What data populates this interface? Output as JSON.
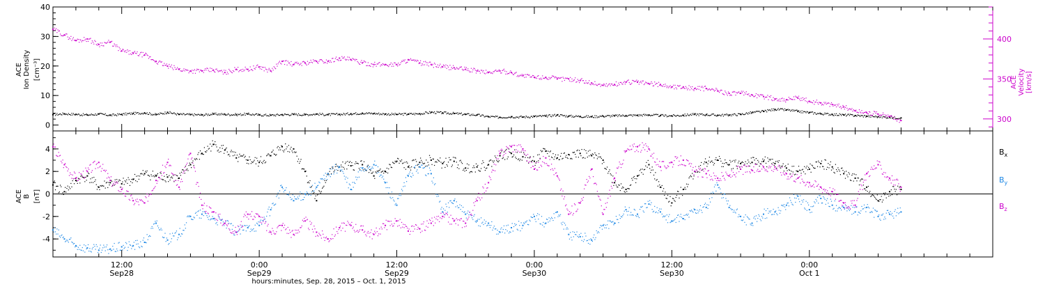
{
  "colors": {
    "density": "#000000",
    "velocity": "#cc00cc",
    "bx": "#000000",
    "by": "#1e88e5",
    "bz": "#cc00cc",
    "axis": "#000000",
    "background": "#ffffff"
  },
  "chart_data": [
    {
      "type": "scatter",
      "title": "",
      "left_axis": {
        "label_lines": [
          "ACE",
          "Ion Density"
        ],
        "unit": "[cm⁻³]",
        "ylim": [
          -2,
          40
        ],
        "ticks": [
          0,
          10,
          20,
          30,
          40
        ],
        "tick_labels": [
          "0",
          "10",
          "20",
          "30",
          "40"
        ]
      },
      "right_axis": {
        "label_lines": [
          "ACE",
          "Velocity"
        ],
        "unit": "[km/s]",
        "ylim": [
          285,
          440
        ],
        "ticks": [
          300,
          350,
          400
        ],
        "tick_labels": [
          "300",
          "350",
          "400"
        ]
      },
      "series": [
        {
          "name": "Ion Density",
          "axis": "left",
          "x_hours": [
            0,
            1,
            2,
            3,
            4,
            5,
            6,
            7,
            8,
            9,
            10,
            11,
            12,
            13,
            14,
            15,
            16,
            17,
            18,
            19,
            20,
            21,
            22,
            23,
            24,
            25,
            26,
            27,
            28,
            29,
            30,
            31,
            32,
            33,
            34,
            35,
            36,
            37,
            38,
            39,
            40,
            41,
            42,
            43,
            44,
            45,
            46,
            47,
            48,
            49,
            50,
            51,
            52,
            53,
            54,
            55,
            56,
            57,
            58,
            59,
            60,
            61,
            62,
            63,
            64,
            65,
            66,
            67,
            68,
            69,
            70,
            71,
            72,
            73,
            74
          ],
          "values": [
            3.5,
            3.8,
            3.6,
            3.4,
            3.7,
            3.3,
            3.6,
            3.9,
            4.1,
            3.5,
            4.3,
            3.6,
            3.5,
            3.4,
            3.7,
            3.6,
            3.5,
            3.7,
            3.4,
            3.3,
            3.5,
            3.6,
            3.5,
            3.7,
            3.5,
            3.6,
            3.8,
            4.0,
            3.9,
            3.7,
            3.6,
            3.7,
            3.8,
            4.3,
            4.1,
            3.9,
            3.6,
            3.4,
            2.8,
            2.6,
            2.8,
            2.7,
            2.9,
            3.0,
            3.4,
            3.0,
            2.9,
            2.8,
            3.0,
            3.1,
            3.2,
            3.3,
            3.4,
            3.2,
            3.1,
            3.3,
            3.6,
            3.5,
            3.3,
            3.4,
            3.6,
            4.2,
            4.6,
            5.3,
            5.1,
            4.6,
            4.2,
            3.8,
            3.6,
            3.4,
            3.2,
            3.0,
            2.8,
            2.6,
            2.4
          ]
        },
        {
          "name": "Velocity",
          "axis": "right",
          "x_hours": [
            0,
            1,
            2,
            3,
            4,
            5,
            6,
            7,
            8,
            9,
            10,
            11,
            12,
            13,
            14,
            15,
            16,
            17,
            18,
            19,
            20,
            21,
            22,
            23,
            24,
            25,
            26,
            27,
            28,
            29,
            30,
            31,
            32,
            33,
            34,
            35,
            36,
            37,
            38,
            39,
            40,
            41,
            42,
            43,
            44,
            45,
            46,
            47,
            48,
            49,
            50,
            51,
            52,
            53,
            54,
            55,
            56,
            57,
            58,
            59,
            60,
            61,
            62,
            63,
            64,
            65,
            66,
            67,
            68,
            69,
            70,
            71,
            72,
            73,
            74
          ],
          "values": [
            412,
            405,
            398,
            400,
            393,
            396,
            385,
            382,
            380,
            372,
            366,
            362,
            360,
            360,
            361,
            358,
            362,
            362,
            365,
            360,
            372,
            368,
            370,
            372,
            372,
            376,
            374,
            370,
            368,
            368,
            368,
            374,
            370,
            368,
            365,
            364,
            362,
            360,
            358,
            360,
            358,
            354,
            352,
            352,
            350,
            350,
            348,
            345,
            342,
            343,
            346,
            346,
            344,
            343,
            340,
            340,
            338,
            338,
            335,
            332,
            332,
            330,
            328,
            325,
            324,
            326,
            322,
            320,
            318,
            315,
            310,
            308,
            306,
            303,
            298
          ]
        }
      ]
    },
    {
      "type": "scatter",
      "title": "",
      "left_axis": {
        "label_lines": [
          "ACE",
          "B"
        ],
        "unit": "[nT]",
        "ylim": [
          -5.6,
          5.6
        ],
        "ticks": [
          -4,
          -2,
          0,
          2,
          4
        ],
        "tick_labels": [
          "-4",
          "-2",
          "0",
          "2",
          "4"
        ]
      },
      "zero_line": true,
      "series": [
        {
          "name": "Bx",
          "x_hours": [
            0,
            1,
            2,
            3,
            4,
            5,
            6,
            7,
            8,
            9,
            10,
            11,
            12,
            13,
            14,
            15,
            16,
            17,
            18,
            19,
            20,
            21,
            22,
            23,
            24,
            25,
            26,
            27,
            28,
            29,
            30,
            31,
            32,
            33,
            34,
            35,
            36,
            37,
            38,
            39,
            40,
            41,
            42,
            43,
            44,
            45,
            46,
            47,
            48,
            49,
            50,
            51,
            52,
            53,
            54,
            55,
            56,
            57,
            58,
            59,
            60,
            61,
            62,
            63,
            64,
            65,
            66,
            67,
            68,
            69,
            70,
            71,
            72,
            73,
            74
          ],
          "values": [
            0.8,
            0.2,
            1.2,
            1.6,
            0.6,
            1.0,
            0.9,
            1.3,
            1.8,
            1.6,
            1.5,
            1.4,
            2.6,
            3.6,
            4.4,
            3.9,
            3.2,
            3.0,
            2.8,
            3.4,
            4.2,
            4.0,
            2.0,
            -0.6,
            1.8,
            2.4,
            2.5,
            2.6,
            1.6,
            2.0,
            2.9,
            2.4,
            2.8,
            3.0,
            2.7,
            2.9,
            2.3,
            2.4,
            2.6,
            3.4,
            3.6,
            3.3,
            2.9,
            3.8,
            3.2,
            3.5,
            3.6,
            3.4,
            3.0,
            1.0,
            0.4,
            1.6,
            2.6,
            0.6,
            -0.8,
            0.4,
            2.0,
            2.8,
            3.0,
            2.6,
            2.7,
            2.8,
            2.9,
            2.7,
            2.3,
            2.0,
            2.2,
            2.7,
            2.4,
            1.8,
            1.4,
            0.6,
            -0.6,
            0.2,
            0.4
          ]
        },
        {
          "name": "By",
          "x_hours": [
            0,
            1,
            2,
            3,
            4,
            5,
            6,
            7,
            8,
            9,
            10,
            11,
            12,
            13,
            14,
            15,
            16,
            17,
            18,
            19,
            20,
            21,
            22,
            23,
            24,
            25,
            26,
            27,
            28,
            29,
            30,
            31,
            32,
            33,
            34,
            35,
            36,
            37,
            38,
            39,
            40,
            41,
            42,
            43,
            44,
            45,
            46,
            47,
            48,
            49,
            50,
            51,
            52,
            53,
            54,
            55,
            56,
            57,
            58,
            59,
            60,
            61,
            62,
            63,
            64,
            65,
            66,
            67,
            68,
            69,
            70,
            71,
            72,
            73,
            74
          ],
          "values": [
            -3.2,
            -4.0,
            -4.6,
            -4.8,
            -5.0,
            -4.9,
            -4.7,
            -4.6,
            -4.3,
            -2.6,
            -4.1,
            -3.6,
            -2.0,
            -1.8,
            -2.2,
            -2.6,
            -3.4,
            -3.0,
            -2.8,
            -1.4,
            0.6,
            -0.6,
            0.0,
            0.6,
            1.8,
            2.4,
            0.4,
            2.3,
            2.6,
            1.0,
            -1.0,
            1.6,
            2.4,
            1.8,
            -1.6,
            -0.6,
            -1.8,
            -2.4,
            -2.6,
            -3.4,
            -3.0,
            -2.8,
            -2.0,
            -2.6,
            -1.6,
            -3.6,
            -3.8,
            -4.1,
            -2.8,
            -2.6,
            -1.4,
            -1.8,
            -0.9,
            -1.6,
            -2.4,
            -2.2,
            -1.4,
            -1.2,
            0.8,
            -1.2,
            -2.0,
            -2.6,
            -1.8,
            -1.6,
            -1.0,
            -0.2,
            -1.4,
            -0.4,
            -1.0,
            -1.2,
            -1.6,
            -1.2,
            -2.0,
            -1.8,
            -1.6
          ]
        },
        {
          "name": "Bz",
          "x_hours": [
            0,
            1,
            2,
            3,
            4,
            5,
            6,
            7,
            8,
            9,
            10,
            11,
            12,
            13,
            14,
            15,
            16,
            17,
            18,
            19,
            20,
            21,
            22,
            23,
            24,
            25,
            26,
            27,
            28,
            29,
            30,
            31,
            32,
            33,
            34,
            35,
            36,
            37,
            38,
            39,
            40,
            41,
            42,
            43,
            44,
            45,
            46,
            47,
            48,
            49,
            50,
            51,
            52,
            53,
            54,
            55,
            56,
            57,
            58,
            59,
            60,
            61,
            62,
            63,
            64,
            65,
            66,
            67,
            68,
            69,
            70,
            71,
            72,
            73,
            74
          ],
          "values": [
            4.2,
            2.6,
            1.4,
            2.0,
            2.8,
            1.2,
            0.4,
            -0.6,
            -0.8,
            1.2,
            2.8,
            0.6,
            3.6,
            -1.0,
            -1.6,
            -2.6,
            -3.4,
            -1.8,
            -2.0,
            -3.4,
            -2.8,
            -3.6,
            -2.4,
            -3.4,
            -4.0,
            -3.0,
            -2.8,
            -3.2,
            -3.6,
            -2.8,
            -2.4,
            -3.3,
            -3.1,
            -2.6,
            -2.0,
            -2.4,
            -2.6,
            -0.6,
            1.0,
            3.6,
            4.2,
            4.0,
            2.2,
            3.2,
            1.6,
            -1.8,
            -0.8,
            2.2,
            -1.8,
            1.4,
            3.8,
            4.2,
            4.0,
            2.4,
            2.8,
            3.0,
            2.0,
            1.8,
            1.4,
            1.6,
            2.2,
            2.1,
            2.4,
            2.4,
            1.8,
            1.4,
            1.0,
            0.6,
            0.2,
            -0.8,
            -1.0,
            1.8,
            2.6,
            1.4,
            0.6
          ]
        }
      ],
      "legend": {
        "placement": "right",
        "entries": [
          {
            "base": "B",
            "sub": "x"
          },
          {
            "base": "B",
            "sub": "y"
          },
          {
            "base": "B",
            "sub": "z"
          }
        ]
      }
    }
  ],
  "x_axis": {
    "range_hours": [
      0,
      82
    ],
    "major_ticks": [
      {
        "hour": 6,
        "time": "12:00",
        "date": "Sep28"
      },
      {
        "hour": 18,
        "time": "0:00",
        "date": "Sep29"
      },
      {
        "hour": 30,
        "time": "12:00",
        "date": "Sep29"
      },
      {
        "hour": 42,
        "time": "0:00",
        "date": "Sep30"
      },
      {
        "hour": 54,
        "time": "12:00",
        "date": "Sep30"
      },
      {
        "hour": 66,
        "time": "0:00",
        "date": "Oct 1"
      }
    ],
    "title": "hours:minutes, Sep. 28, 2015 – Oct. 1, 2015"
  }
}
